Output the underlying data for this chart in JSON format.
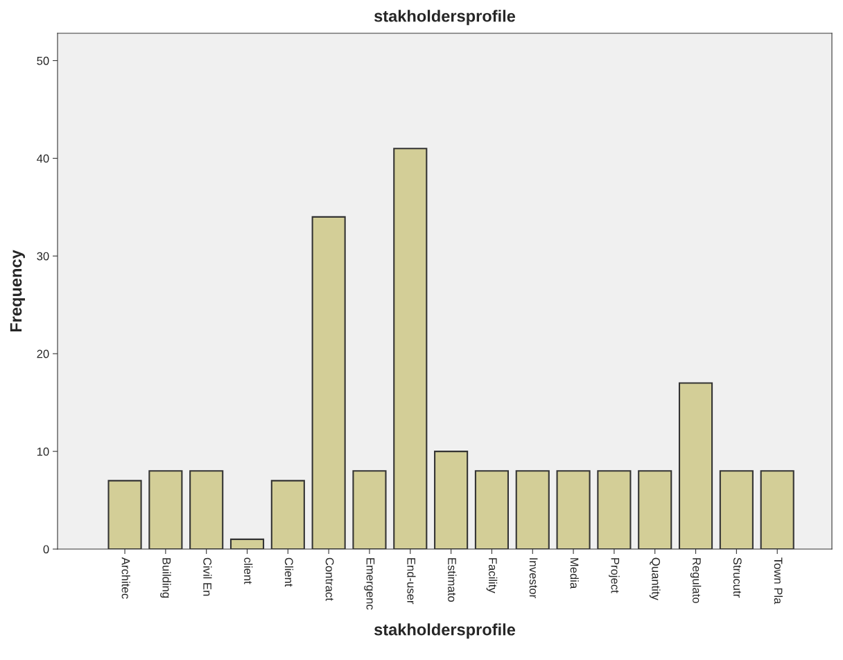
{
  "chart_data": {
    "type": "bar",
    "title": "stakholdersprofile",
    "xlabel": "stakholdersprofile",
    "ylabel": "Frequency",
    "categories": [
      "Architec",
      "Building",
      "Civil En",
      "client",
      "Client",
      "Contract",
      "Emergenc",
      "End-user",
      "Estimato",
      "Facility",
      "Investor",
      "Media",
      "Project",
      "Quantity",
      "Regulato",
      "Strucutr",
      "Town Pla"
    ],
    "values": [
      7,
      8,
      8,
      1,
      7,
      34,
      8,
      41,
      10,
      8,
      8,
      8,
      8,
      8,
      17,
      8,
      8
    ],
    "color": "#d3ce97",
    "ylim": [
      0,
      52.8
    ],
    "yticks": [
      0,
      10,
      20,
      30,
      40,
      50
    ],
    "grid": false,
    "legend": false
  }
}
